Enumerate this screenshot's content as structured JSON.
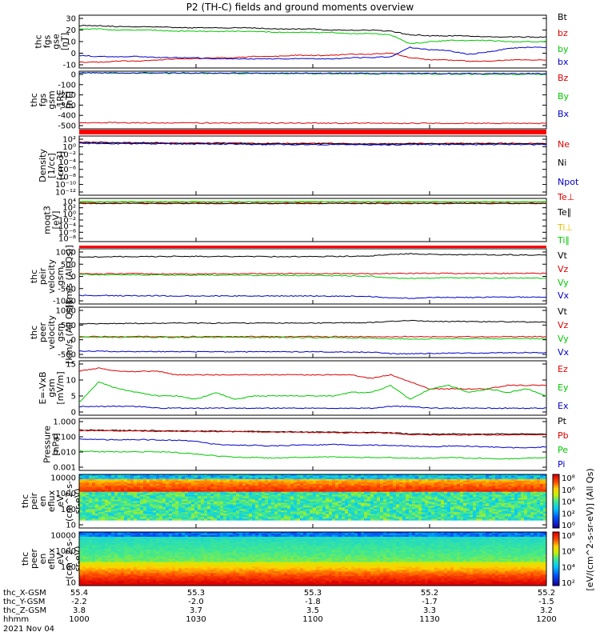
{
  "title": "P2 (TH-C) fields and ground moments overview",
  "colors": {
    "black": "#000000",
    "red": "#dd0000",
    "green": "#00c800",
    "blue": "#0000cc"
  },
  "chart_data": [
    {
      "type": "line",
      "id": "fgs",
      "ylabel": [
        "thc",
        "fgs",
        "gse",
        "[nT]"
      ],
      "yticks": [
        "30",
        "20",
        "10",
        "0",
        "-10"
      ],
      "ylim": [
        -14,
        32
      ],
      "series": [
        {
          "name": "Bt",
          "color": "black",
          "values": [
            23,
            23,
            22,
            22,
            22,
            21,
            21,
            21,
            21,
            21,
            20,
            20,
            20,
            19,
            19,
            19,
            18,
            15,
            14,
            14,
            14,
            13,
            13,
            13,
            13
          ]
        },
        {
          "name": "bz",
          "color": "red",
          "values": [
            -9,
            -9,
            -8,
            -8,
            -7,
            -6,
            -6,
            -5,
            -5,
            -4,
            -4,
            -3,
            -3,
            -3,
            -2,
            -2,
            -1,
            -5,
            -7,
            -7,
            -8,
            -8,
            -7,
            -7,
            -7
          ]
        },
        {
          "name": "by",
          "color": "green",
          "values": [
            20,
            20,
            19,
            19,
            19,
            18,
            18,
            18,
            18,
            18,
            17,
            17,
            17,
            17,
            16,
            16,
            15,
            7,
            9,
            10,
            10,
            10,
            9,
            9,
            9
          ]
        },
        {
          "name": "bx",
          "color": "blue",
          "values": [
            -3,
            -4,
            -4,
            -4,
            -5,
            -5,
            -5,
            -6,
            -6,
            -6,
            -6,
            -6,
            -6,
            -6,
            -5,
            -5,
            -4,
            4,
            2,
            1,
            -2,
            0,
            3,
            4,
            4
          ]
        }
      ]
    },
    {
      "type": "line",
      "id": "fgs2",
      "ylabel": [
        "thc",
        "fgs",
        "gsm",
        "-1RE",
        "[nT]"
      ],
      "yticks": [
        "0",
        "-100",
        "-200",
        "-300",
        "-400",
        "-500"
      ],
      "ylim": [
        -540,
        20
      ],
      "series": [
        {
          "name": "Bz",
          "color": "red",
          "values": [
            -480,
            -480,
            -481,
            -481,
            -482,
            -482,
            -482,
            -483,
            -483,
            -483,
            -484,
            -484,
            -484,
            -485,
            -485,
            -485,
            -486,
            -486,
            -486,
            -487,
            -487,
            -487,
            -488,
            -488,
            -488
          ]
        },
        {
          "name": "By",
          "color": "green",
          "values": [
            2,
            2,
            1,
            1,
            0,
            0,
            -1,
            -1,
            -2,
            -2,
            -3,
            -3,
            -4,
            -4,
            -5,
            -5,
            -6,
            -6,
            -7,
            -7,
            -8,
            -8,
            -9,
            -9,
            -10
          ]
        },
        {
          "name": "Bx",
          "color": "blue",
          "values": [
            4,
            4,
            3,
            3,
            3,
            2,
            2,
            2,
            1,
            1,
            1,
            0,
            0,
            0,
            -1,
            -1,
            -1,
            -2,
            -2,
            -2,
            -3,
            -3,
            -3,
            -4,
            -4
          ]
        }
      ]
    },
    {
      "type": "line",
      "id": "density",
      "scale": "log",
      "ylabel": [
        "Density",
        "[1/cc]",
        "[cm-3]"
      ],
      "yticks": [
        "10²",
        "10⁰",
        "10⁻²",
        "10⁻⁴",
        "10⁻⁶",
        "10⁻⁸",
        "10⁻¹⁰",
        "10⁻¹²"
      ],
      "ylim": [
        -13,
        2.3
      ],
      "series": [
        {
          "name": "Ne",
          "color": "red",
          "values": [
            0.7,
            0.7,
            0.6,
            0.6,
            0.6,
            0.5,
            0.5,
            0.5,
            0.5,
            0.4,
            0.4,
            0.4,
            0.4,
            0.4,
            0.3,
            0.3,
            0.3,
            0.4,
            0.4,
            0.4,
            0.4,
            0.4,
            0.4,
            0.4,
            0.4
          ]
        },
        {
          "name": "Ni",
          "color": "black",
          "values": [
            0.6,
            0.6,
            0.5,
            0.5,
            0.5,
            0.4,
            0.4,
            0.4,
            0.4,
            0.3,
            0.3,
            0.3,
            0.3,
            0.3,
            0.2,
            0.2,
            0.2,
            0.3,
            0.3,
            0.3,
            0.3,
            0.3,
            0.3,
            0.3,
            0.3
          ]
        },
        {
          "name": "Npot",
          "color": "blue",
          "values": [
            0.4,
            0.4,
            0.3,
            0.3,
            0.3,
            0.2,
            0.2,
            0.2,
            0.2,
            0.1,
            0.1,
            0.1,
            0.1,
            0.1,
            0.0,
            0.0,
            0.0,
            0.1,
            0.1,
            0.1,
            0.1,
            0.1,
            0.1,
            0.1,
            0.1
          ]
        }
      ]
    },
    {
      "type": "line",
      "id": "temp",
      "scale": "log",
      "ylabel": [
        "moqt3",
        "[eV]"
      ],
      "yticks": [
        "10⁴",
        "10²",
        "10⁰",
        "10⁻²",
        "10⁻⁴",
        "10⁻⁶",
        "10⁻⁸"
      ],
      "ylim": [
        -9,
        4.5
      ],
      "series": [
        {
          "name": "Te⊥",
          "color": "red",
          "values": [
            2.9,
            2.9,
            2.9,
            2.9,
            2.9,
            2.9,
            2.9,
            2.9,
            2.9,
            2.9,
            2.9,
            2.9,
            2.9,
            2.9,
            2.9,
            2.9,
            2.9,
            2.9,
            2.9,
            2.9,
            2.9,
            2.9,
            2.9,
            2.9,
            2.9
          ]
        },
        {
          "name": "Te∥",
          "color": "black",
          "values": [
            3.0,
            3.0,
            3.0,
            3.0,
            3.0,
            3.0,
            3.0,
            3.0,
            3.0,
            3.0,
            3.0,
            3.0,
            3.0,
            3.0,
            3.0,
            3.0,
            3.0,
            3.0,
            3.0,
            3.0,
            3.0,
            3.0,
            3.0,
            3.0,
            3.0
          ]
        },
        {
          "name": "Ti⊥",
          "color": "#e6c000",
          "values": [
            3.4,
            3.4,
            3.4,
            3.4,
            3.4,
            3.4,
            3.4,
            3.4,
            3.4,
            3.4,
            3.4,
            3.4,
            3.4,
            3.4,
            3.4,
            3.4,
            3.4,
            3.4,
            3.4,
            3.4,
            3.4,
            3.4,
            3.4,
            3.4,
            3.4
          ]
        },
        {
          "name": "Ti∥",
          "color": "green",
          "values": [
            3.5,
            3.5,
            3.5,
            3.5,
            3.5,
            3.5,
            3.5,
            3.5,
            3.5,
            3.5,
            3.5,
            3.5,
            3.5,
            3.5,
            3.5,
            3.5,
            3.5,
            3.5,
            3.5,
            3.5,
            3.5,
            3.5,
            3.5,
            3.5,
            3.5
          ]
        }
      ]
    },
    {
      "type": "line",
      "id": "peir_v",
      "ylabel": [
        "thc",
        "peir",
        "velocity",
        "gsm",
        "[km/s (All Qs)]"
      ],
      "yticks": [
        "1000",
        "500",
        "0",
        "-500",
        "-1000"
      ],
      "ylim": [
        -1100,
        1100
      ],
      "series": [
        {
          "name": "Vt",
          "color": "black",
          "values": [
            780,
            780,
            790,
            790,
            790,
            800,
            800,
            790,
            790,
            790,
            790,
            790,
            790,
            800,
            800,
            820,
            880,
            900,
            880,
            870,
            870,
            860,
            860,
            850,
            850
          ]
        },
        {
          "name": "Vz",
          "color": "red",
          "values": [
            100,
            100,
            110,
            110,
            100,
            100,
            100,
            100,
            100,
            110,
            110,
            110,
            110,
            110,
            110,
            110,
            120,
            120,
            120,
            120,
            120,
            120,
            120,
            120,
            120
          ]
        },
        {
          "name": "Vy",
          "color": "green",
          "values": [
            80,
            70,
            60,
            60,
            60,
            50,
            50,
            50,
            50,
            40,
            40,
            40,
            30,
            30,
            20,
            10,
            -60,
            -80,
            -70,
            -60,
            -60,
            -60,
            -70,
            -70,
            -70
          ]
        },
        {
          "name": "Vx",
          "color": "blue",
          "values": [
            -760,
            -760,
            -770,
            -770,
            -770,
            -780,
            -780,
            -780,
            -780,
            -780,
            -780,
            -780,
            -780,
            -790,
            -790,
            -810,
            -860,
            -870,
            -850,
            -840,
            -840,
            -830,
            -830,
            -820,
            -820
          ]
        }
      ]
    },
    {
      "type": "line",
      "id": "peer_v",
      "ylabel": [
        "thc",
        "peer",
        "velocity",
        "gsm",
        "[km/s (All Qs)]"
      ],
      "yticks": [
        "1000",
        "500",
        "0",
        "-500"
      ],
      "ylim": [
        -750,
        1150
      ],
      "series": [
        {
          "name": "Vt",
          "color": "black",
          "values": [
            530,
            530,
            540,
            540,
            540,
            550,
            550,
            550,
            550,
            550,
            550,
            550,
            550,
            560,
            560,
            570,
            620,
            640,
            620,
            610,
            610,
            600,
            600,
            590,
            590
          ]
        },
        {
          "name": "Vz",
          "color": "red",
          "values": [
            40,
            40,
            40,
            40,
            40,
            40,
            40,
            40,
            40,
            40,
            40,
            40,
            40,
            40,
            40,
            40,
            40,
            40,
            40,
            40,
            40,
            40,
            40,
            40,
            40
          ]
        },
        {
          "name": "Vy",
          "color": "green",
          "values": [
            20,
            20,
            15,
            15,
            15,
            10,
            10,
            10,
            10,
            5,
            5,
            5,
            0,
            0,
            -5,
            -10,
            -40,
            -50,
            -40,
            -30,
            -30,
            -30,
            -40,
            -40,
            -40
          ]
        },
        {
          "name": "Vx",
          "color": "blue",
          "values": [
            -510,
            -510,
            -520,
            -520,
            -520,
            -530,
            -530,
            -530,
            -530,
            -530,
            -530,
            -530,
            -530,
            -540,
            -540,
            -550,
            -600,
            -610,
            -590,
            -580,
            -580,
            -570,
            -570,
            -560,
            -560
          ]
        }
      ]
    },
    {
      "type": "line",
      "id": "efield",
      "ylabel": [
        "E=-VxB",
        "gsm",
        "[mV/m]"
      ],
      "yticks": [
        "15",
        "10",
        "5",
        "0"
      ],
      "ylim": [
        -0.5,
        15
      ],
      "series": [
        {
          "name": "Ez",
          "color": "red",
          "values": [
            12,
            13,
            12,
            12,
            12,
            11,
            11,
            11,
            11,
            11,
            11,
            11,
            11,
            11,
            11,
            10,
            11,
            9,
            7,
            7,
            7,
            7,
            8,
            8,
            8
          ]
        },
        {
          "name": "Ey",
          "color": "green",
          "values": [
            3,
            9,
            7,
            6,
            5,
            5,
            4,
            6,
            4,
            5,
            5,
            5,
            5,
            5,
            6,
            6,
            8,
            4,
            7,
            8,
            6,
            7,
            6,
            7,
            5
          ]
        },
        {
          "name": "Ex",
          "color": "blue",
          "values": [
            2,
            2,
            2,
            2,
            1.5,
            1.5,
            1.5,
            1.5,
            1.5,
            1.5,
            1.5,
            1.5,
            1.5,
            1.5,
            1.5,
            1.5,
            2,
            2,
            1.5,
            1.5,
            1.5,
            1.5,
            1.5,
            1.5,
            1.5
          ]
        }
      ]
    },
    {
      "type": "line",
      "id": "pressure",
      "scale": "log",
      "ylabel": [
        "Pressure",
        "[nPa]"
      ],
      "yticks": [
        "1.000",
        "0.100",
        "0.010",
        "0.001"
      ],
      "ylim": [
        -3.1,
        0.1
      ],
      "series": [
        {
          "name": "Pt",
          "color": "black",
          "values": [
            -0.62,
            -0.62,
            -0.64,
            -0.64,
            -0.66,
            -0.66,
            -0.68,
            -0.68,
            -0.7,
            -0.7,
            -0.72,
            -0.72,
            -0.74,
            -0.74,
            -0.76,
            -0.76,
            -0.78,
            -0.85,
            -0.86,
            -0.86,
            -0.86,
            -0.86,
            -0.86,
            -0.86,
            -0.86
          ]
        },
        {
          "name": "Pb",
          "color": "red",
          "values": [
            -0.65,
            -0.65,
            -0.67,
            -0.67,
            -0.69,
            -0.69,
            -0.71,
            -0.71,
            -0.73,
            -0.73,
            -0.75,
            -0.75,
            -0.77,
            -0.77,
            -0.79,
            -0.79,
            -0.81,
            -0.9,
            -0.91,
            -0.91,
            -0.91,
            -0.91,
            -0.91,
            -0.91,
            -0.91
          ]
        },
        {
          "name": "Pe",
          "color": "green",
          "values": [
            -1.9,
            -1.95,
            -1.95,
            -1.95,
            -1.95,
            -2.0,
            -2.1,
            -2.2,
            -2.3,
            -2.3,
            -2.35,
            -2.3,
            -2.3,
            -2.25,
            -2.3,
            -2.3,
            -2.3,
            -2.35,
            -2.35,
            -2.3,
            -2.35,
            -2.35,
            -2.4,
            -2.35,
            -2.3
          ]
        },
        {
          "name": "Pi",
          "color": "blue",
          "values": [
            -1.15,
            -1.2,
            -1.22,
            -1.2,
            -1.22,
            -1.25,
            -1.3,
            -1.5,
            -1.55,
            -1.55,
            -1.6,
            -1.55,
            -1.55,
            -1.5,
            -1.55,
            -1.55,
            -1.55,
            -1.6,
            -1.65,
            -1.6,
            -1.62,
            -1.65,
            -1.7,
            -1.7,
            -1.65
          ]
        }
      ]
    },
    {
      "type": "heatmap",
      "id": "peir_en",
      "ylabel": [
        "thc",
        "peir",
        "en",
        "eflux",
        "eV",
        "(cm^2-s-",
        "sr-eV)"
      ],
      "yticks": [
        "10000",
        "1000",
        "100",
        "10"
      ],
      "colorbar_label": "[eV/(cm^2-s-sr-eV)] (All Qs)"
    },
    {
      "type": "heatmap",
      "id": "peer_en",
      "ylabel": [
        "thc",
        "peer",
        "en",
        "eflux",
        "eV",
        "(cm^2-s-",
        "sr-eV)"
      ],
      "yticks": [
        "10000",
        "1000",
        "100",
        "10"
      ],
      "colorbar_label": "[eV/(cm^2-s-sr-eV)] (All Qs)"
    }
  ],
  "colorbar": {
    "ion_ticks": [
      "10⁸",
      "10⁶",
      "10⁴",
      "10²",
      "10⁰"
    ],
    "ele_ticks": [
      "10⁸",
      "10⁶",
      "10⁴",
      "10²"
    ],
    "label": "[eV/(cm^2-s-sr-eV)] (All Qs)"
  },
  "xaxis": {
    "rows": [
      {
        "label": "thc_X-GSM",
        "values": [
          "55.4",
          "55.3",
          "55.3",
          "55.2",
          "55.2"
        ]
      },
      {
        "label": "thc_Y-GSM",
        "values": [
          "-2.2",
          "-2.0",
          "-1.8",
          "-1.7",
          "-1.5"
        ]
      },
      {
        "label": "thc_Z-GSM",
        "values": [
          "3.8",
          "3.7",
          "3.5",
          "3.3",
          "3.2"
        ]
      },
      {
        "label": "hhmm",
        "values": [
          "1000",
          "1030",
          "1100",
          "1130",
          "1200"
        ]
      }
    ],
    "date": "2021 Nov 04"
  }
}
